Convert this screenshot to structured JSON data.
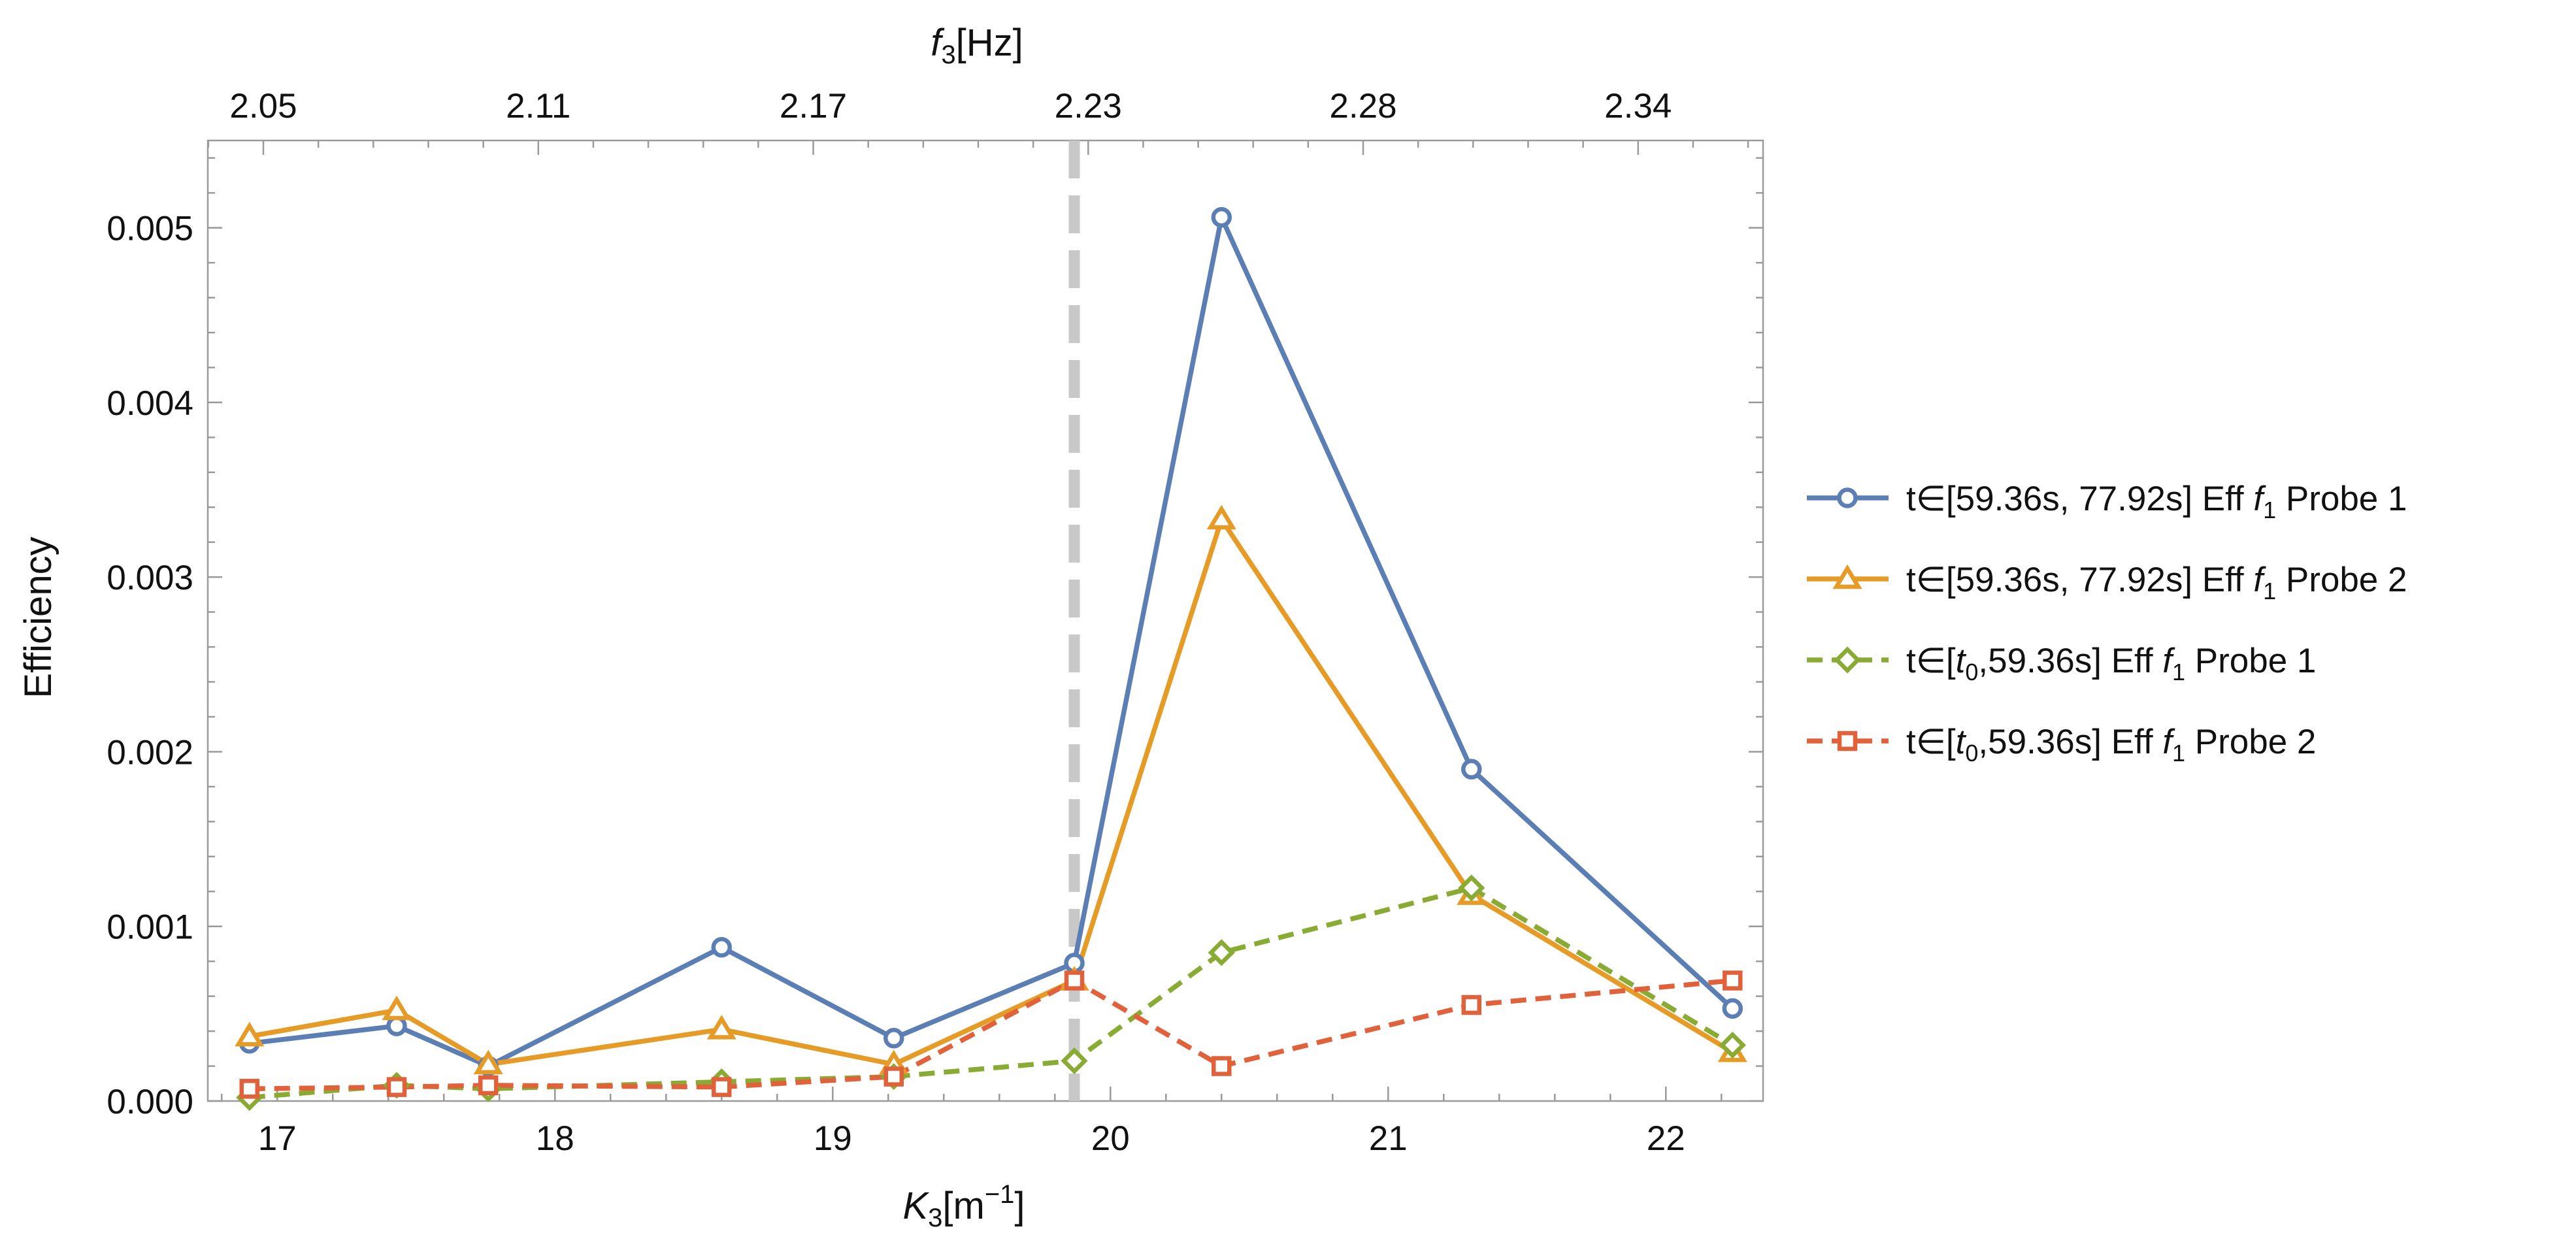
{
  "chart_data": {
    "type": "line",
    "title": "",
    "xlabel": {
      "main": "K",
      "sub": "3",
      "unit_open": "[m",
      "unit_sup": "−1",
      "unit_close": "]"
    },
    "ylabel": "Efficiency",
    "top_axis_label": {
      "main": "f",
      "sub": "3",
      "unit": "[Hz]"
    },
    "xlim": [
      16.75,
      22.35
    ],
    "ylim": [
      0.0,
      0.0055
    ],
    "x_ticks": [
      17,
      18,
      19,
      20,
      21,
      22
    ],
    "y_ticks": [
      0.0,
      0.001,
      0.002,
      0.003,
      0.004,
      0.005
    ],
    "y_tick_labels": [
      "0.000",
      "0.001",
      "0.002",
      "0.003",
      "0.004",
      "0.005"
    ],
    "top_ticks": [
      {
        "x": 16.95,
        "label": "2.05"
      },
      {
        "x": 17.94,
        "label": "2.11"
      },
      {
        "x": 18.93,
        "label": "2.17"
      },
      {
        "x": 19.92,
        "label": "2.23"
      },
      {
        "x": 20.91,
        "label": "2.28"
      },
      {
        "x": 21.9,
        "label": "2.34"
      }
    ],
    "vertical_marker": {
      "x": 19.87,
      "color": "#c8c8c8"
    },
    "series": [
      {
        "name": "t∈[59.36s, 77.92s] Eff f1 Probe 1",
        "legend": {
          "pre": "t∈[59.36s, 77.92s] Eff ",
          "f": "f",
          "sub": "1",
          "post": " Probe 1"
        },
        "color": "#5b7fb5",
        "marker": "circle",
        "dashed": false,
        "x": [
          16.9,
          17.43,
          17.76,
          18.6,
          19.22,
          19.87,
          20.4,
          21.3,
          22.24
        ],
        "y": [
          0.00033,
          0.00043,
          0.0002,
          0.00088,
          0.00036,
          0.00079,
          0.00506,
          0.0019,
          0.00053
        ]
      },
      {
        "name": "t∈[59.36s, 77.92s] Eff f1 Probe 2",
        "legend": {
          "pre": "t∈[59.36s, 77.92s] Eff ",
          "f": "f",
          "sub": "1",
          "post": " Probe 2"
        },
        "color": "#e59b25",
        "marker": "triangle",
        "dashed": false,
        "x": [
          16.9,
          17.43,
          17.76,
          18.6,
          19.22,
          19.87,
          20.4,
          21.3,
          22.24
        ],
        "y": [
          0.00037,
          0.00052,
          0.00021,
          0.00041,
          0.00021,
          0.00069,
          0.00333,
          0.00118,
          0.00028
        ]
      },
      {
        "name": "t∈[t0,59.36s] Eff f1 Probe 1",
        "legend": {
          "pre": "t∈[",
          "t": "t",
          "tsub": "0",
          "mid": ",59.36s] Eff ",
          "f": "f",
          "sub": "1",
          "post": " Probe 1"
        },
        "color": "#8aab33",
        "marker": "diamond",
        "dashed": true,
        "x": [
          16.9,
          17.43,
          17.76,
          18.6,
          19.22,
          19.87,
          20.4,
          21.3,
          22.24
        ],
        "y": [
          2e-05,
          9e-05,
          7e-05,
          0.00011,
          0.00014,
          0.00023,
          0.00085,
          0.00122,
          0.00032
        ]
      },
      {
        "name": "t∈[t0,59.36s] Eff f1 Probe 2",
        "legend": {
          "pre": "t∈[",
          "t": "t",
          "tsub": "0",
          "mid": ",59.36s] Eff ",
          "f": "f",
          "sub": "1",
          "post": " Probe 2"
        },
        "color": "#e0613a",
        "marker": "square",
        "dashed": true,
        "x": [
          16.9,
          17.43,
          17.76,
          18.6,
          19.22,
          19.87,
          20.4,
          21.3,
          22.24
        ],
        "y": [
          7e-05,
          8e-05,
          9e-05,
          8e-05,
          0.00014,
          0.00069,
          0.0002,
          0.00055,
          0.00069
        ]
      }
    ]
  }
}
